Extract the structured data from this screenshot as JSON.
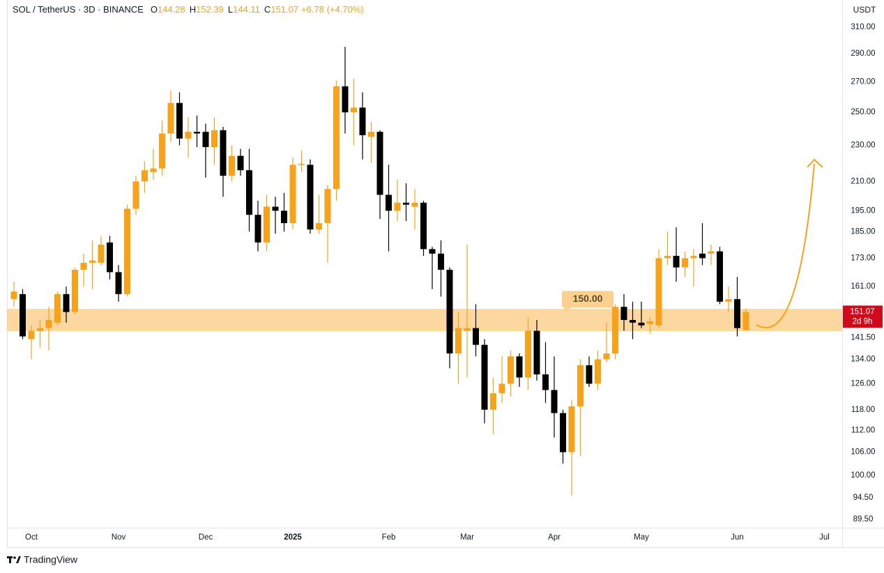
{
  "chart_data": {
    "type": "candlestick",
    "header": {
      "symbol": "SOL / TetherUS · 3D · BINANCE",
      "fields": [
        {
          "key": "O",
          "value": 144.28
        },
        {
          "key": "H",
          "value": 152.39
        },
        {
          "key": "L",
          "value": 144.11
        },
        {
          "key": "C",
          "value": 151.07
        }
      ],
      "change": "+6.78 (+4.70%)"
    },
    "y_axis_label": "USDT",
    "log_scale": true,
    "up_color": "#f7a21b",
    "down_color": "#000000",
    "categories": [
      null,
      null,
      "Oct",
      null,
      null,
      null,
      null,
      null,
      null,
      null,
      null,
      null,
      "Nov",
      null,
      null,
      null,
      null,
      null,
      null,
      null,
      null,
      null,
      "Dec",
      null,
      null,
      null,
      null,
      null,
      null,
      null,
      null,
      null,
      "2025",
      null,
      null,
      null,
      null,
      null,
      null,
      null,
      null,
      null,
      null,
      "Feb",
      null,
      null,
      null,
      null,
      null,
      null,
      null,
      null,
      "Mar",
      null,
      null,
      null,
      null,
      null,
      null,
      null,
      null,
      null,
      "Apr",
      null,
      null,
      null,
      null,
      null,
      null,
      null,
      null,
      null,
      "May",
      null,
      null,
      null,
      null,
      null,
      null,
      null,
      null,
      null,
      null,
      "Jun",
      null,
      null,
      null,
      null,
      null,
      null,
      null,
      null,
      null,
      "Jul"
    ],
    "open": [
      156,
      158,
      141,
      144,
      145,
      147,
      158,
      151,
      168,
      171,
      171,
      180,
      167,
      158,
      196,
      210,
      215,
      217,
      237,
      256,
      234,
      238,
      238,
      229,
      239,
      213,
      224,
      216,
      193,
      180,
      197,
      195,
      189,
      219,
      219,
      186,
      189,
      206,
      267,
      250,
      253,
      235,
      238,
      203,
      195,
      199,
      197,
      199,
      177,
      175,
      168,
      136,
      144,
      145,
      139,
      118,
      123,
      126,
      135,
      128,
      144,
      129,
      124,
      117,
      106,
      119,
      132,
      126,
      134,
      136,
      153,
      148,
      147,
      146.5,
      146,
      173,
      174,
      169,
      173,
      175,
      175,
      176,
      155,
      156,
      144.28,
      null,
      null,
      null,
      null,
      null,
      null,
      null,
      null,
      null
    ],
    "high": [
      163,
      160,
      146,
      148,
      153,
      159,
      161,
      169,
      175,
      181,
      183,
      183,
      170,
      198,
      213,
      221,
      228,
      245,
      264,
      263,
      247,
      248,
      243,
      247,
      241,
      230,
      228,
      228,
      200,
      203,
      202,
      204,
      223,
      227,
      222,
      203,
      208,
      271,
      295,
      272,
      263,
      244,
      239,
      219,
      211,
      209,
      206,
      200,
      178,
      181,
      169,
      151,
      179,
      154,
      141,
      128,
      135,
      137,
      136,
      149,
      148,
      140,
      135,
      118,
      121,
      134,
      135,
      137,
      147,
      154,
      158,
      155,
      155,
      149,
      177,
      185,
      187,
      176,
      177,
      189,
      179,
      178,
      161,
      165,
      152.39,
      null,
      null,
      null,
      null,
      null,
      null,
      null,
      null,
      null
    ],
    "low": [
      153,
      141,
      134,
      138,
      137,
      146,
      147,
      150,
      161,
      160,
      170,
      164,
      155,
      157,
      193,
      204,
      211,
      213,
      232,
      230,
      223,
      229,
      212,
      219,
      202,
      210,
      213,
      185,
      176,
      176,
      184,
      185,
      186,
      215,
      184,
      184,
      171,
      200,
      237,
      230,
      222,
      220,
      191,
      176,
      190,
      190,
      186,
      174,
      160,
      157,
      131,
      126,
      128,
      135,
      114,
      111,
      120,
      122,
      125,
      124,
      127,
      120,
      110,
      103,
      95,
      105,
      125,
      124,
      133,
      134,
      144,
      141,
      145,
      143,
      145,
      170,
      163,
      165,
      161,
      170,
      170,
      154,
      151,
      142,
      144.11,
      null,
      null,
      null,
      null,
      null,
      null,
      null,
      null,
      null
    ],
    "close": [
      159,
      142,
      144,
      145,
      148,
      158,
      151,
      168,
      171,
      172,
      179,
      167,
      158,
      196,
      210,
      216,
      217,
      237,
      256,
      234,
      238,
      237,
      229,
      239,
      213,
      224,
      216,
      193,
      180,
      197,
      195,
      189,
      219,
      219.5,
      186,
      189,
      206,
      267,
      250,
      253,
      236,
      238,
      203,
      195,
      199,
      198,
      199,
      177,
      175,
      168,
      136,
      145,
      145,
      139,
      118,
      123,
      126,
      135,
      128,
      144,
      129,
      124,
      117,
      106,
      119,
      132,
      126,
      134,
      136,
      153,
      148,
      147,
      146,
      147.5,
      173,
      174,
      169,
      173,
      174,
      173,
      176,
      155,
      156,
      145,
      151.07,
      null,
      null,
      null,
      null,
      null,
      null,
      null,
      null,
      null
    ],
    "ylim": [
      87.6,
      332
    ],
    "yticks": [
      {
        "value": 310,
        "label": "310.00"
      },
      {
        "value": 290,
        "label": "290.00"
      },
      {
        "value": 270,
        "label": "270.00"
      },
      {
        "value": 250,
        "label": "250.00"
      },
      {
        "value": 230,
        "label": "230.00"
      },
      {
        "value": 210,
        "label": "210.00"
      },
      {
        "value": 195,
        "label": "195.00"
      },
      {
        "value": 185,
        "label": "185.00"
      },
      {
        "value": 173,
        "label": "173.00"
      },
      {
        "value": 161,
        "label": "161.00"
      },
      {
        "value": 141.5,
        "label": "141.50"
      },
      {
        "value": 134,
        "label": "134.00"
      },
      {
        "value": 126,
        "label": "126.00"
      },
      {
        "value": 118,
        "label": "118.00"
      },
      {
        "value": 112,
        "label": "112.00"
      },
      {
        "value": 106,
        "label": "106.00"
      },
      {
        "value": 100,
        "label": "100.00"
      },
      {
        "value": 94.5,
        "label": "94.50"
      },
      {
        "value": 89.5,
        "label": "89.50"
      }
    ],
    "hline": {
      "value": 150,
      "label": "150.00",
      "low": 143.9,
      "high": 152.2,
      "color": "#fcd08e"
    },
    "last_price": {
      "value": 151.07,
      "label": "151.07",
      "countdown": "2d 9h",
      "color": "#d1091b"
    },
    "brand": "TradingView"
  }
}
